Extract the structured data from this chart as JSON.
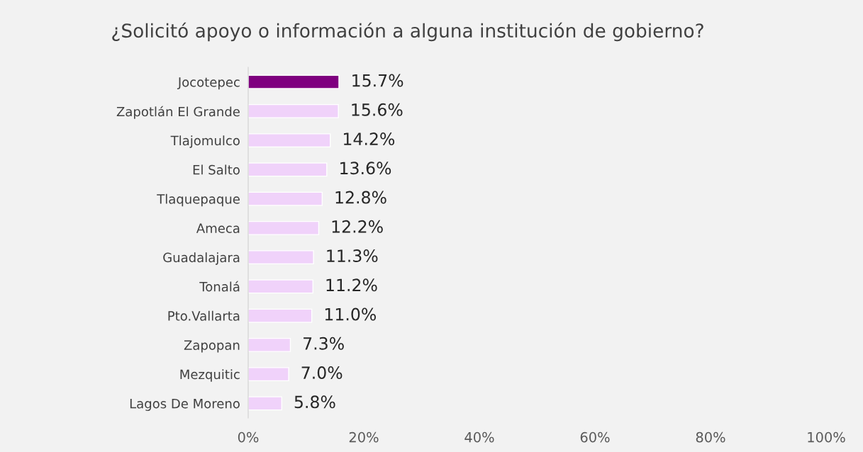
{
  "chart_data": {
    "type": "bar",
    "orientation": "horizontal",
    "title": "¿Solicitó apoyo o información a alguna institución de gobierno?",
    "categories": [
      "Jocotepec",
      "Zapotlán El Grande",
      "Tlajomulco",
      "El Salto",
      "Tlaquepaque",
      "Ameca",
      "Guadalajara",
      "Tonalá",
      "Pto.Vallarta",
      "Zapopan",
      "Mezquitic",
      "Lagos De Moreno"
    ],
    "values": [
      15.7,
      15.6,
      14.2,
      13.6,
      12.8,
      12.2,
      11.3,
      11.2,
      11.0,
      7.3,
      7.0,
      5.8
    ],
    "value_labels": [
      "15.7%",
      "15.6%",
      "14.2%",
      "13.6%",
      "12.8%",
      "12.2%",
      "11.3%",
      "11.2%",
      "11.0%",
      "7.3%",
      "7.0%",
      "5.8%"
    ],
    "colors": [
      "#7f007f",
      "#f0d2fa",
      "#f0d2fa",
      "#f0d2fa",
      "#f0d2fa",
      "#f0d2fa",
      "#f0d2fa",
      "#f0d2fa",
      "#f0d2fa",
      "#f0d2fa",
      "#f0d2fa",
      "#f0d2fa"
    ],
    "xlim": [
      0,
      100
    ],
    "xticks": [
      {
        "value": 0,
        "label": "0%"
      },
      {
        "value": 20,
        "label": "20%"
      },
      {
        "value": 40,
        "label": "40%"
      },
      {
        "value": 60,
        "label": "60%"
      },
      {
        "value": 80,
        "label": "80%"
      },
      {
        "value": 100,
        "label": "100%"
      }
    ],
    "grid": false,
    "legend": false
  }
}
